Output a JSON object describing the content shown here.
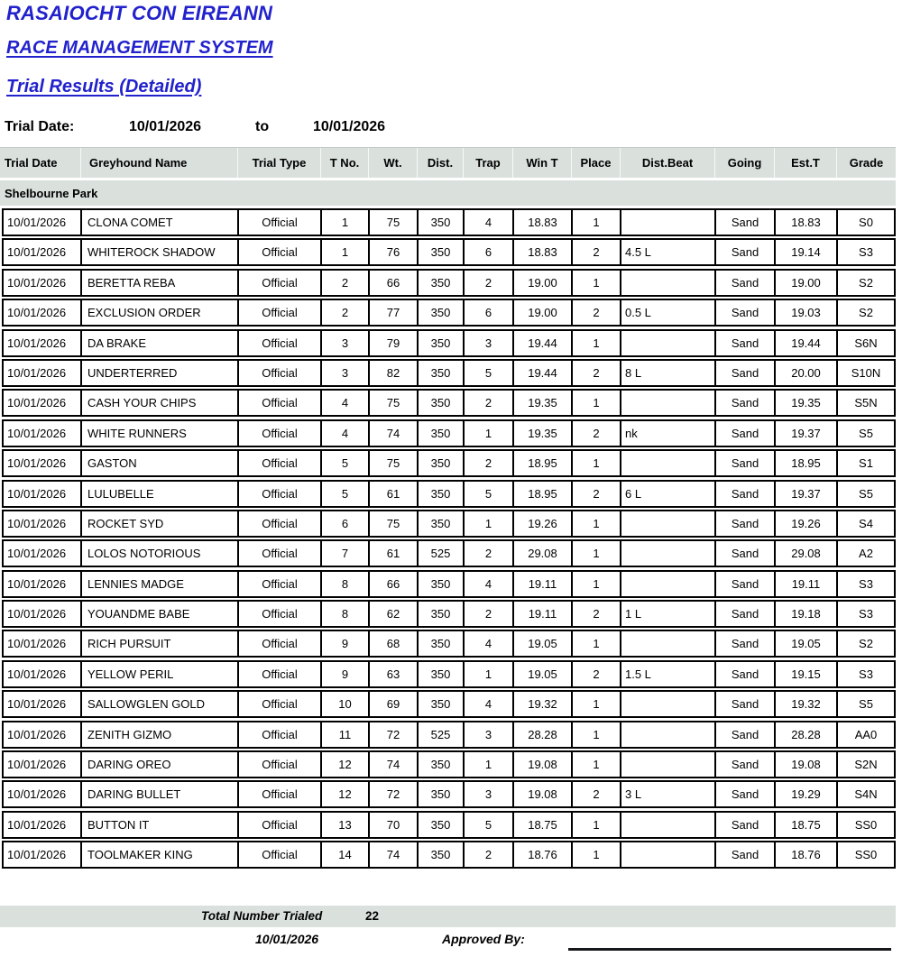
{
  "header": {
    "org_title": "RASAIOCHT CON EIREANN",
    "system_title": "RACE MANAGEMENT SYSTEM",
    "report_title": "Trial Results (Detailed)"
  },
  "filter": {
    "label": "Trial Date:",
    "from_date": "10/01/2026",
    "to_label": "to",
    "to_date": "10/01/2026"
  },
  "table": {
    "columns": [
      "Trial Date",
      "Greyhound Name",
      "Trial Type",
      "T No.",
      "Wt.",
      "Dist.",
      "Trap",
      "Win T",
      "Place",
      "Dist.Beat",
      "Going",
      "Est.T",
      "Grade"
    ],
    "group_header": "Shelbourne Park",
    "rows": [
      [
        "10/01/2026",
        "CLONA COMET",
        "Official",
        "1",
        "75",
        "350",
        "4",
        "18.83",
        "1",
        "",
        "Sand",
        "18.83",
        "S0"
      ],
      [
        "10/01/2026",
        "WHITEROCK SHADOW",
        "Official",
        "1",
        "76",
        "350",
        "6",
        "18.83",
        "2",
        "4.5 L",
        "Sand",
        "19.14",
        "S3"
      ],
      [
        "10/01/2026",
        "BERETTA REBA",
        "Official",
        "2",
        "66",
        "350",
        "2",
        "19.00",
        "1",
        "",
        "Sand",
        "19.00",
        "S2"
      ],
      [
        "10/01/2026",
        "EXCLUSION ORDER",
        "Official",
        "2",
        "77",
        "350",
        "6",
        "19.00",
        "2",
        "0.5 L",
        "Sand",
        "19.03",
        "S2"
      ],
      [
        "10/01/2026",
        "DA BRAKE",
        "Official",
        "3",
        "79",
        "350",
        "3",
        "19.44",
        "1",
        "",
        "Sand",
        "19.44",
        "S6N"
      ],
      [
        "10/01/2026",
        "UNDERTERRED",
        "Official",
        "3",
        "82",
        "350",
        "5",
        "19.44",
        "2",
        "8 L",
        "Sand",
        "20.00",
        "S10N"
      ],
      [
        "10/01/2026",
        "CASH YOUR CHIPS",
        "Official",
        "4",
        "75",
        "350",
        "2",
        "19.35",
        "1",
        "",
        "Sand",
        "19.35",
        "S5N"
      ],
      [
        "10/01/2026",
        "WHITE RUNNERS",
        "Official",
        "4",
        "74",
        "350",
        "1",
        "19.35",
        "2",
        "nk",
        "Sand",
        "19.37",
        "S5"
      ],
      [
        "10/01/2026",
        "GASTON",
        "Official",
        "5",
        "75",
        "350",
        "2",
        "18.95",
        "1",
        "",
        "Sand",
        "18.95",
        "S1"
      ],
      [
        "10/01/2026",
        "LULUBELLE",
        "Official",
        "5",
        "61",
        "350",
        "5",
        "18.95",
        "2",
        "6 L",
        "Sand",
        "19.37",
        "S5"
      ],
      [
        "10/01/2026",
        "ROCKET SYD",
        "Official",
        "6",
        "75",
        "350",
        "1",
        "19.26",
        "1",
        "",
        "Sand",
        "19.26",
        "S4"
      ],
      [
        "10/01/2026",
        "LOLOS NOTORIOUS",
        "Official",
        "7",
        "61",
        "525",
        "2",
        "29.08",
        "1",
        "",
        "Sand",
        "29.08",
        "A2"
      ],
      [
        "10/01/2026",
        "LENNIES MADGE",
        "Official",
        "8",
        "66",
        "350",
        "4",
        "19.11",
        "1",
        "",
        "Sand",
        "19.11",
        "S3"
      ],
      [
        "10/01/2026",
        "YOUANDME BABE",
        "Official",
        "8",
        "62",
        "350",
        "2",
        "19.11",
        "2",
        "1 L",
        "Sand",
        "19.18",
        "S3"
      ],
      [
        "10/01/2026",
        "RICH PURSUIT",
        "Official",
        "9",
        "68",
        "350",
        "4",
        "19.05",
        "1",
        "",
        "Sand",
        "19.05",
        "S2"
      ],
      [
        "10/01/2026",
        "YELLOW PERIL",
        "Official",
        "9",
        "63",
        "350",
        "1",
        "19.05",
        "2",
        "1.5 L",
        "Sand",
        "19.15",
        "S3"
      ],
      [
        "10/01/2026",
        "SALLOWGLEN GOLD",
        "Official",
        "10",
        "69",
        "350",
        "4",
        "19.32",
        "1",
        "",
        "Sand",
        "19.32",
        "S5"
      ],
      [
        "10/01/2026",
        "ZENITH GIZMO",
        "Official",
        "11",
        "72",
        "525",
        "3",
        "28.28",
        "1",
        "",
        "Sand",
        "28.28",
        "AA0"
      ],
      [
        "10/01/2026",
        "DARING OREO",
        "Official",
        "12",
        "74",
        "350",
        "1",
        "19.08",
        "1",
        "",
        "Sand",
        "19.08",
        "S2N"
      ],
      [
        "10/01/2026",
        "DARING BULLET",
        "Official",
        "12",
        "72",
        "350",
        "3",
        "19.08",
        "2",
        "3 L",
        "Sand",
        "19.29",
        "S4N"
      ],
      [
        "10/01/2026",
        "BUTTON IT",
        "Official",
        "13",
        "70",
        "350",
        "5",
        "18.75",
        "1",
        "",
        "Sand",
        "18.75",
        "SS0"
      ],
      [
        "10/01/2026",
        "TOOLMAKER KING",
        "Official",
        "14",
        "74",
        "350",
        "2",
        "18.76",
        "1",
        "",
        "Sand",
        "18.76",
        "SS0"
      ]
    ]
  },
  "footer": {
    "total_label": "Total Number Trialed",
    "total_value": "22",
    "date": "10/01/2026",
    "approved_label": "Approved By:"
  },
  "colors": {
    "title_blue": "#2222cd",
    "band_bg": "#dae1dd",
    "table_border": "#000000"
  }
}
